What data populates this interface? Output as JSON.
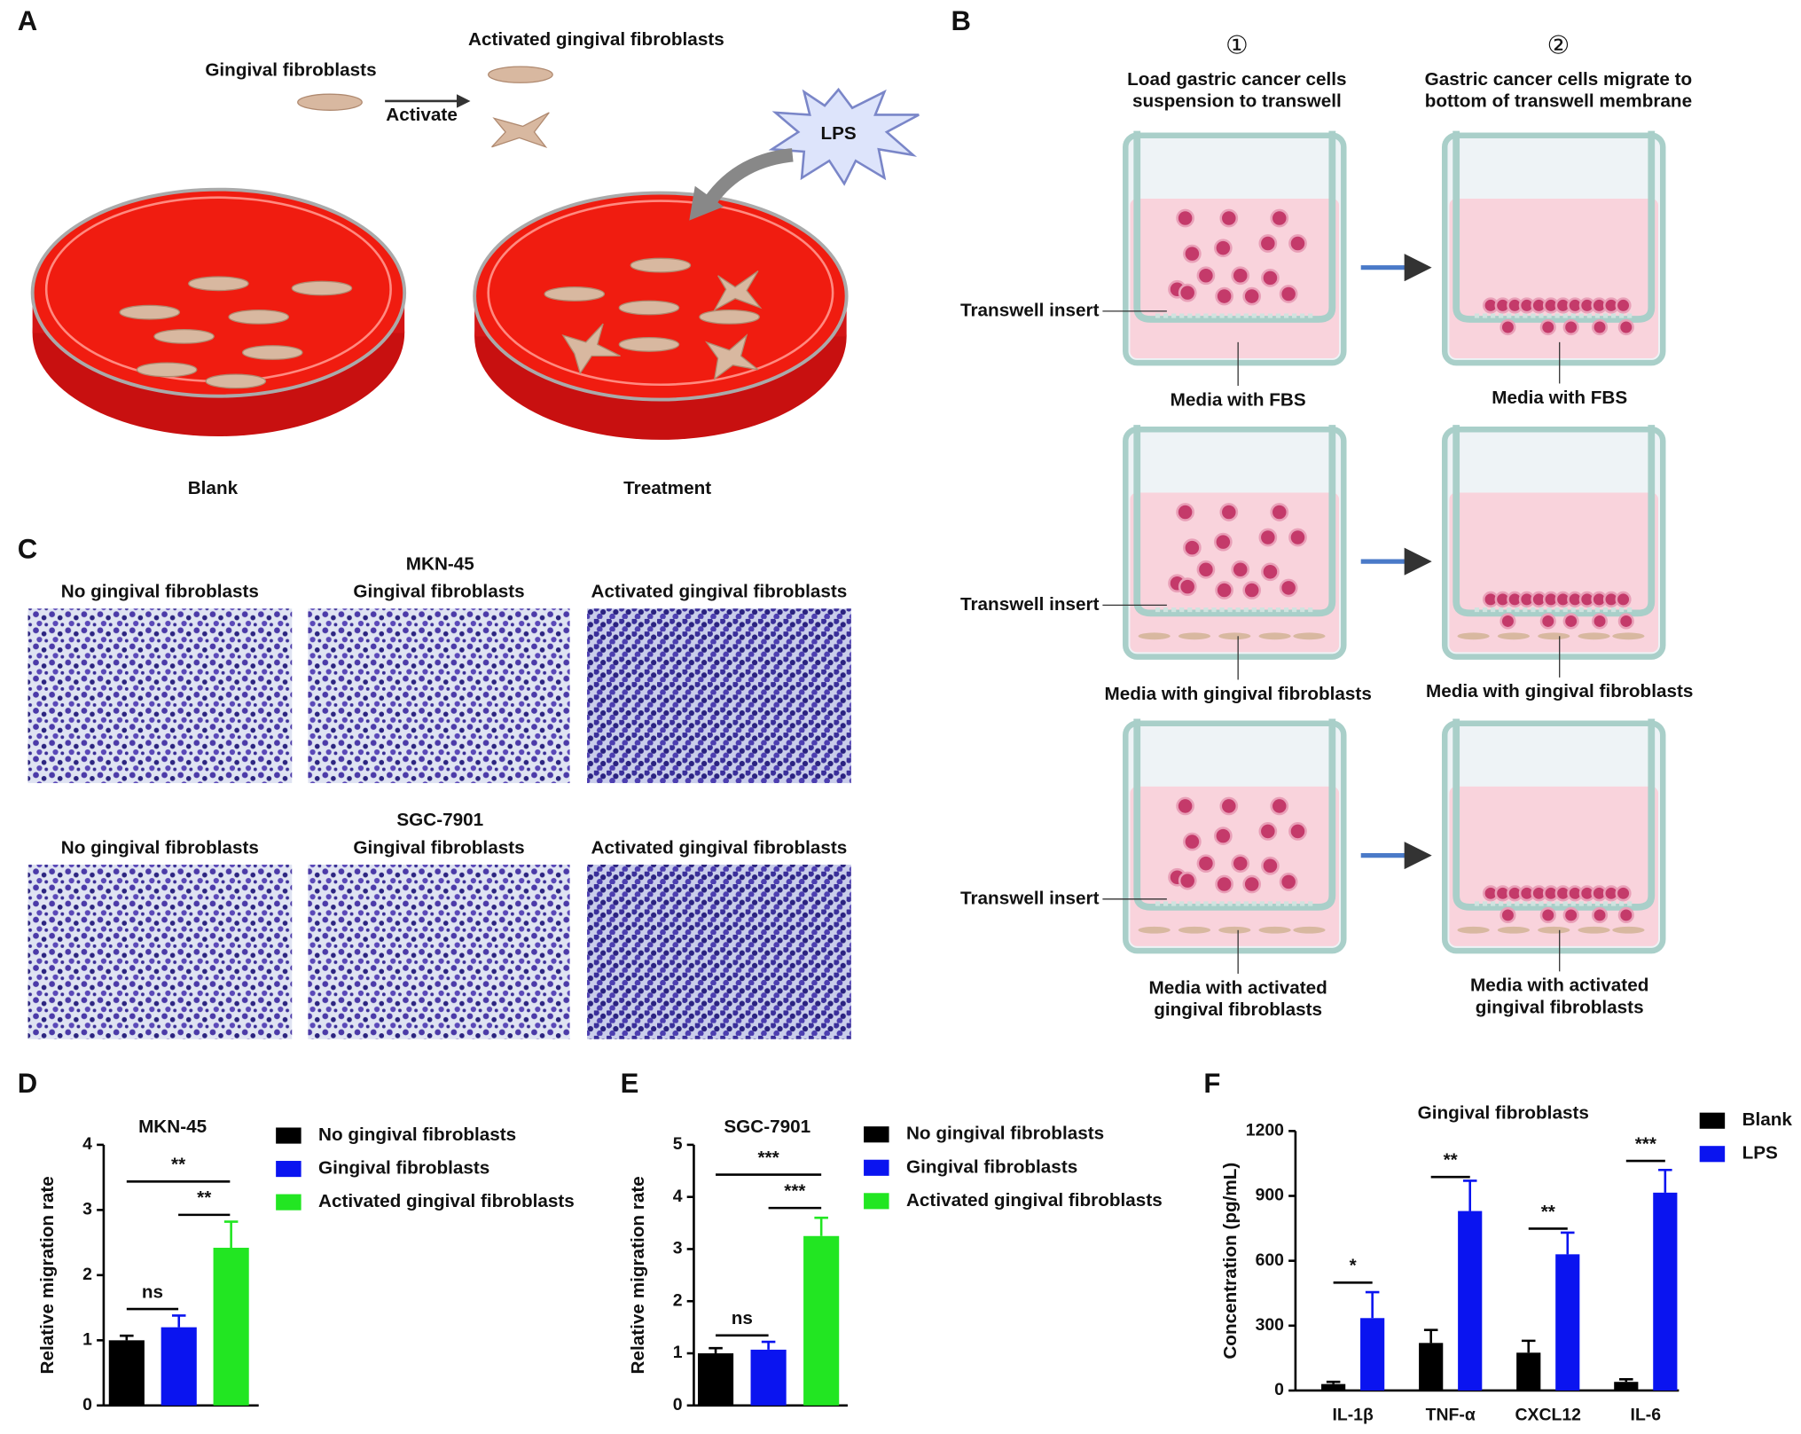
{
  "panel_labels": [
    "A",
    "B",
    "C",
    "D",
    "E",
    "F"
  ],
  "panel_a": {
    "cell_label": "Gingival fibroblasts",
    "arrow_label": "Activate",
    "activated_label": "Activated gingival fibroblasts",
    "stimulus": "LPS",
    "dishes": [
      "Blank",
      "Treatment"
    ]
  },
  "panel_b": {
    "steps": [
      {
        "number": "①",
        "lines": [
          "Load gastric cancer cells",
          "suspension to transwell"
        ]
      },
      {
        "number": "②",
        "lines": [
          "Gastric cancer cells migrate to",
          "bottom of transwell membrane"
        ]
      }
    ],
    "insert_labels": [
      "Transwell insert",
      "Transwell insert",
      "Transwell insert"
    ],
    "rows": [
      {
        "left": [
          "Media with FBS"
        ],
        "right": [
          "Media with FBS"
        ]
      },
      {
        "left": [
          "Media with gingival fibroblasts"
        ],
        "right": [
          "Media with gingival fibroblasts"
        ]
      },
      {
        "left": [
          "Media with activated",
          "gingival fibroblasts"
        ],
        "right": [
          "Media with activated",
          "gingival fibroblasts"
        ]
      }
    ]
  },
  "panel_c": {
    "blocks": [
      {
        "title": "MKN-45",
        "columns": [
          "No gingival fibroblasts",
          "Gingival fibroblasts",
          "Activated gingival fibroblasts"
        ]
      },
      {
        "title": "SGC-7901",
        "columns": [
          "No gingival fibroblasts",
          "Gingival fibroblasts",
          "Activated gingival fibroblasts"
        ]
      }
    ]
  },
  "chart_data": [
    {
      "type": "bar",
      "title": "MKN-45",
      "y_label": "Relative migration rate",
      "categories": [
        null
      ],
      "ylim": [
        0,
        4
      ],
      "yticks": [
        0,
        1,
        2,
        3,
        4
      ],
      "series": [
        {
          "name": "No gingival fibroblasts",
          "color": "#000000",
          "values": [
            1.0
          ],
          "errors": [
            0.07
          ]
        },
        {
          "name": "Gingival fibroblasts",
          "color": "#0a14f0",
          "values": [
            1.2
          ],
          "errors": [
            0.18
          ]
        },
        {
          "name": "Activated gingival fibroblasts",
          "color": "#22e622",
          "values": [
            2.42
          ],
          "errors": [
            0.4
          ]
        }
      ],
      "annotations": [
        "ns",
        "**",
        "**"
      ]
    },
    {
      "type": "bar",
      "title": "SGC-7901",
      "y_label": "Relative migration rate",
      "categories": [
        null
      ],
      "ylim": [
        0,
        5
      ],
      "yticks": [
        0,
        1,
        2,
        3,
        4,
        5
      ],
      "series": [
        {
          "name": "No gingival fibroblasts",
          "color": "#000000",
          "values": [
            1.0
          ],
          "errors": [
            0.1
          ]
        },
        {
          "name": "Gingival fibroblasts",
          "color": "#0a14f0",
          "values": [
            1.07
          ],
          "errors": [
            0.15
          ]
        },
        {
          "name": "Activated gingival fibroblasts",
          "color": "#22e622",
          "values": [
            3.25
          ],
          "errors": [
            0.35
          ]
        }
      ],
      "annotations": [
        "ns",
        "***",
        "***"
      ]
    },
    {
      "type": "bar",
      "title": "Gingival fibroblasts",
      "y_label": "Concentration (pg/mL)",
      "categories": [
        "IL-1β",
        "TNF-α",
        "CXCL12",
        "IL-6"
      ],
      "ylim": [
        0,
        1200
      ],
      "yticks": [
        0,
        300,
        600,
        900,
        1200
      ],
      "series": [
        {
          "name": "Blank",
          "color": "#000000",
          "values": [
            30,
            220,
            175,
            40
          ],
          "errors": [
            10,
            60,
            55,
            12
          ]
        },
        {
          "name": "LPS",
          "color": "#0a14f0",
          "values": [
            335,
            830,
            630,
            915
          ],
          "errors": [
            120,
            140,
            100,
            105
          ]
        }
      ],
      "annotations": [
        "*",
        "**",
        "**",
        "***"
      ]
    }
  ]
}
